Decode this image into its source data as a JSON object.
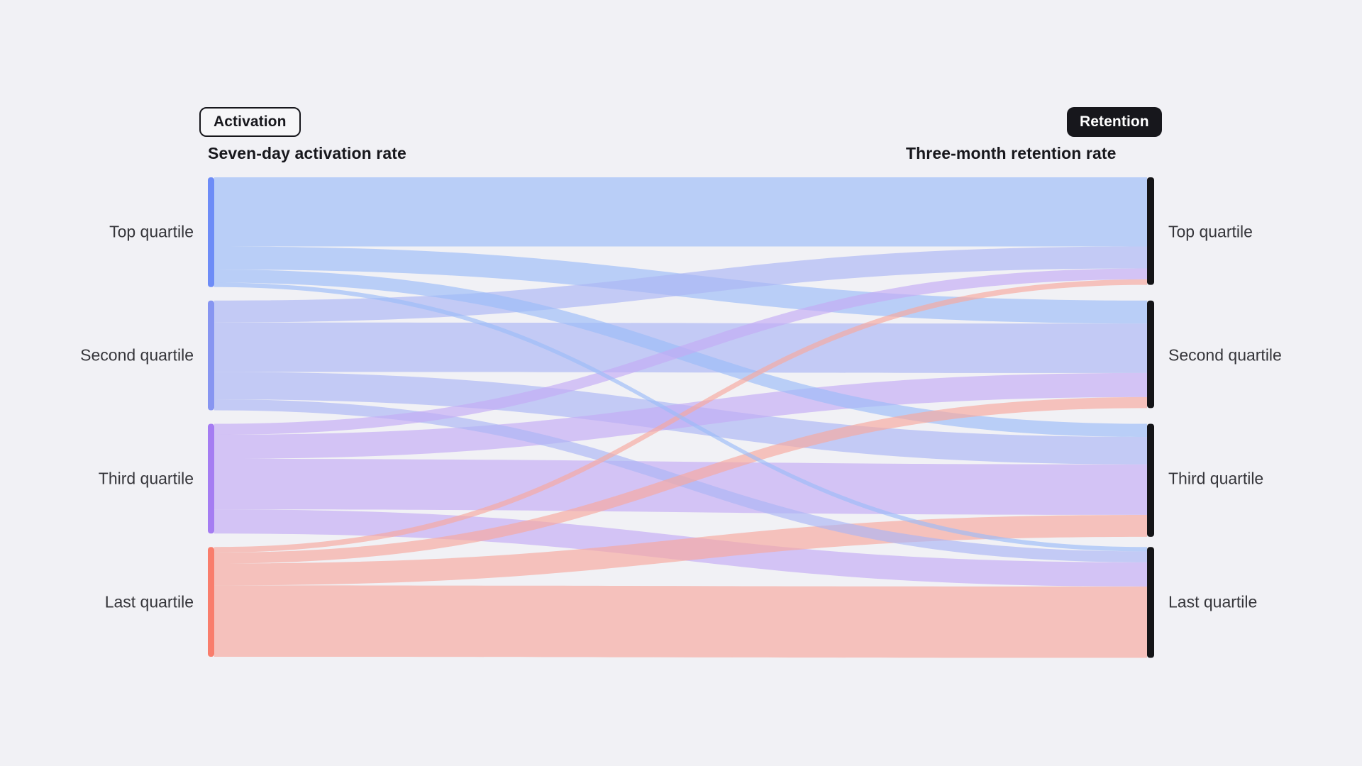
{
  "page": {
    "background": "#f1f1f5"
  },
  "toggles": {
    "activation_label": "Activation",
    "retention_label": "Retention",
    "active": "Retention"
  },
  "chart_data": {
    "type": "sankey",
    "left_title": "Seven-day activation rate",
    "right_title": "Three-month retention rate",
    "left_categories": [
      "Top quartile",
      "Second quartile",
      "Third quartile",
      "Last quartile"
    ],
    "right_categories": [
      "Top quartile",
      "Second quartile",
      "Third quartile",
      "Last quartile"
    ],
    "node_colors": [
      "#6d8cf7",
      "#8795f1",
      "#a57cf2",
      "#f97d6c"
    ],
    "flow_colors": [
      "#9bbcf8",
      "#aab6f5",
      "#c3abf5",
      "#f8a79c"
    ],
    "right_node_color": "#141417",
    "values_are": "fraction of source quartile",
    "links": [
      {
        "source": 0,
        "target": 0,
        "value": 0.63
      },
      {
        "source": 0,
        "target": 1,
        "value": 0.21
      },
      {
        "source": 0,
        "target": 2,
        "value": 0.12
      },
      {
        "source": 0,
        "target": 3,
        "value": 0.04
      },
      {
        "source": 1,
        "target": 0,
        "value": 0.2
      },
      {
        "source": 1,
        "target": 1,
        "value": 0.45
      },
      {
        "source": 1,
        "target": 2,
        "value": 0.25
      },
      {
        "source": 1,
        "target": 3,
        "value": 0.1
      },
      {
        "source": 2,
        "target": 0,
        "value": 0.1
      },
      {
        "source": 2,
        "target": 1,
        "value": 0.22
      },
      {
        "source": 2,
        "target": 2,
        "value": 0.46
      },
      {
        "source": 2,
        "target": 3,
        "value": 0.22
      },
      {
        "source": 3,
        "target": 0,
        "value": 0.05
      },
      {
        "source": 3,
        "target": 1,
        "value": 0.1
      },
      {
        "source": 3,
        "target": 2,
        "value": 0.2
      },
      {
        "source": 3,
        "target": 3,
        "value": 0.65
      }
    ]
  }
}
